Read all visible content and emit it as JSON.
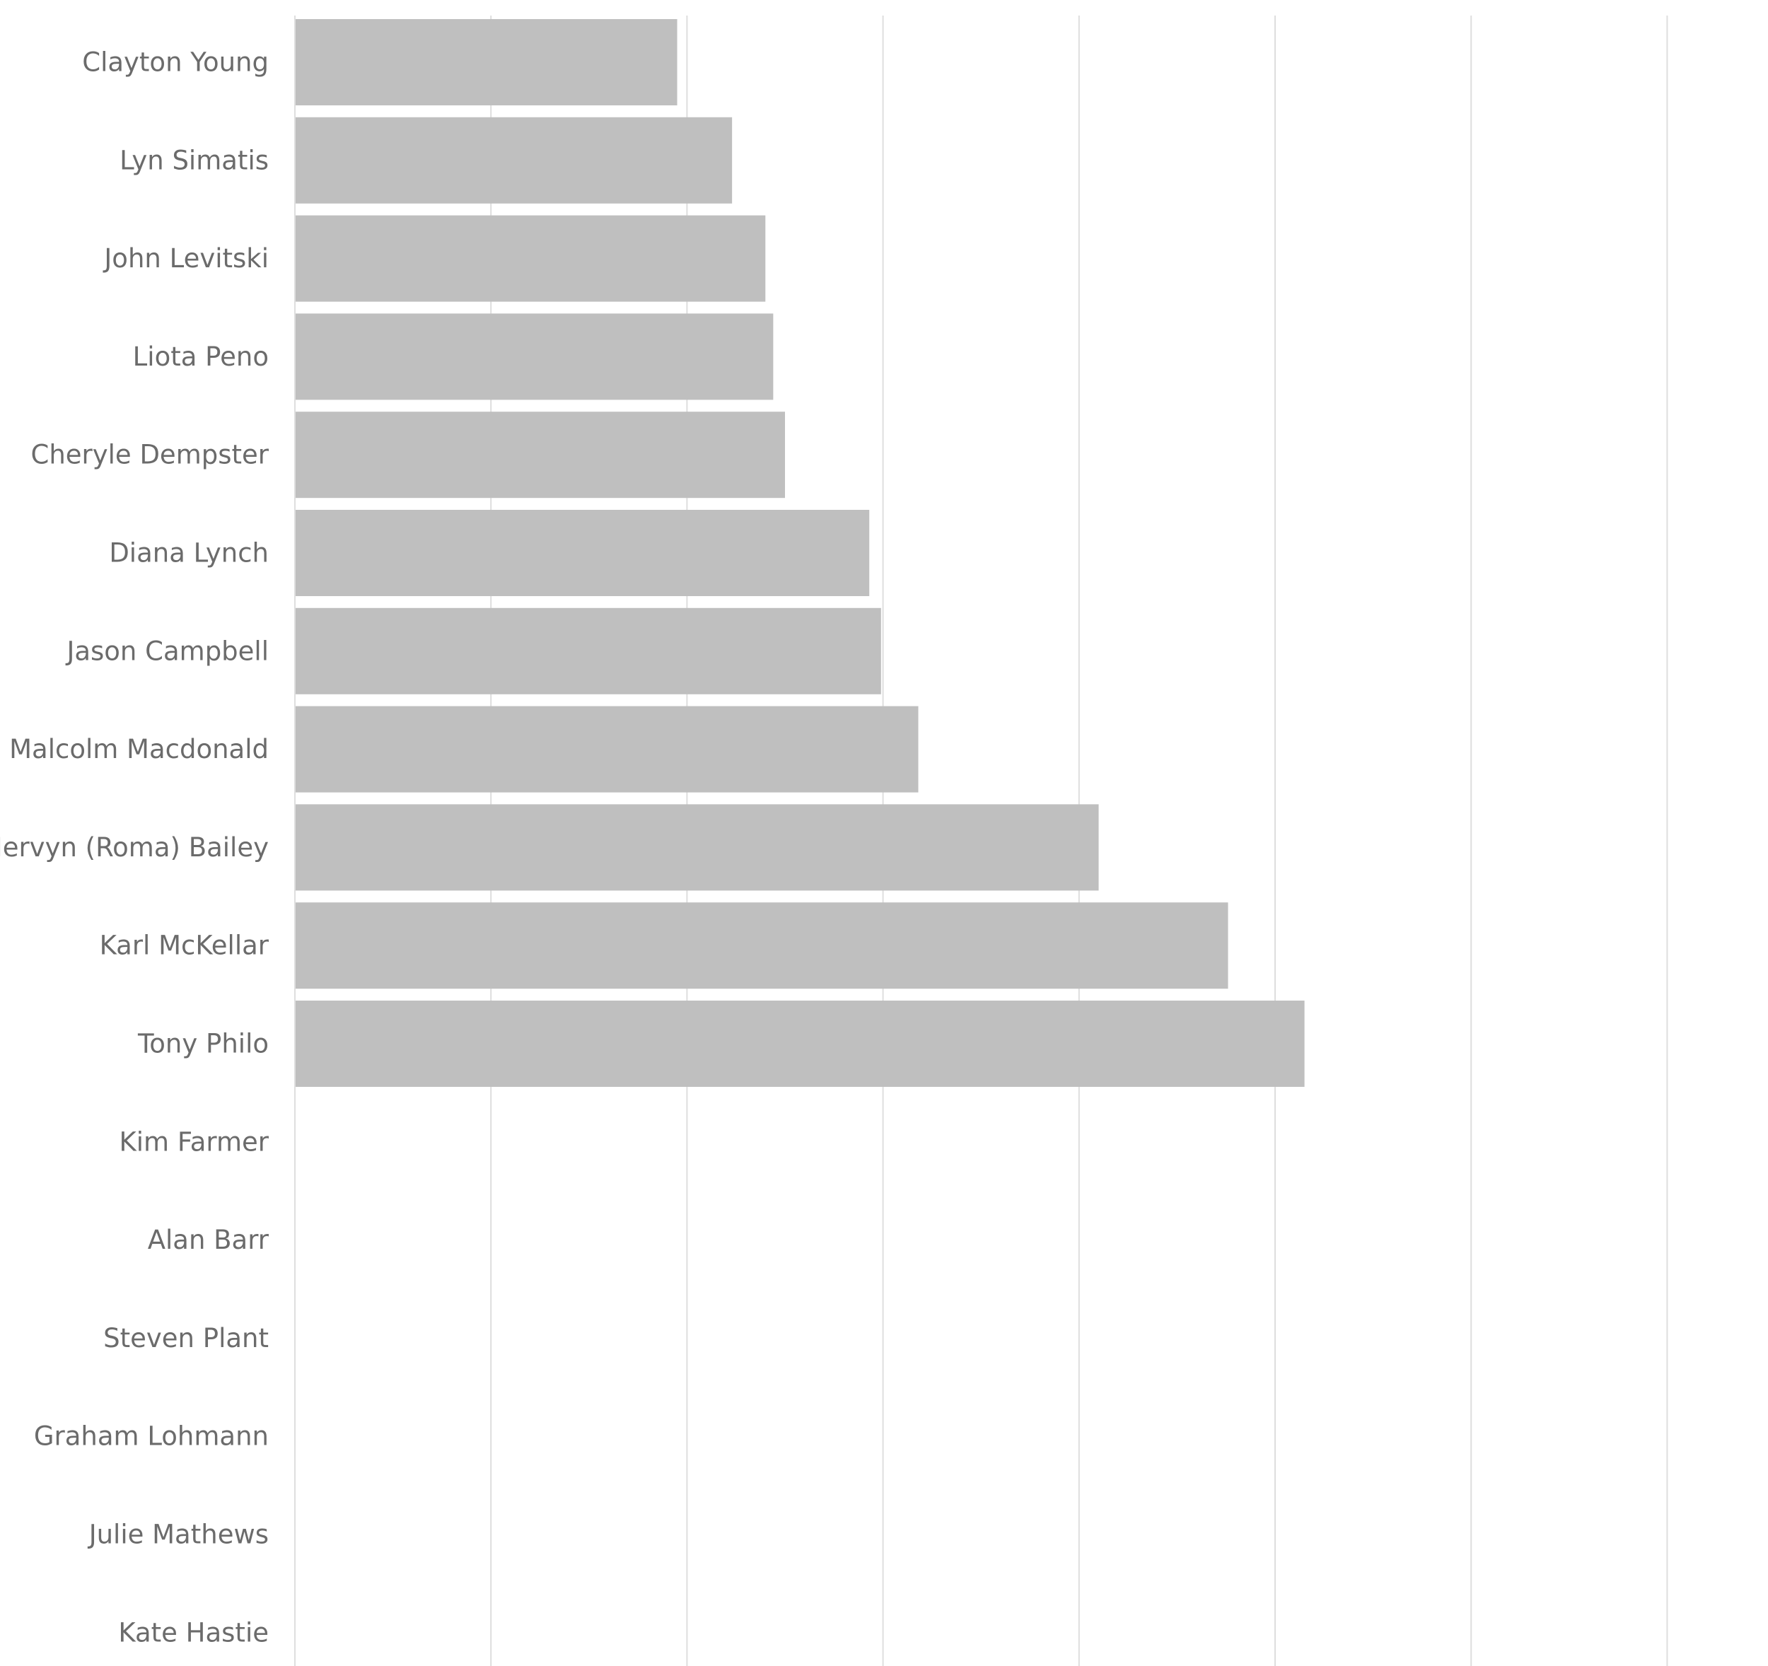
{
  "chart_data": {
    "type": "bar",
    "orientation": "horizontal",
    "title": "",
    "xlabel": "",
    "ylabel": "",
    "grid": true,
    "xlim": [
      0,
      7
    ],
    "categories": [
      "Clayton Young",
      "Lyn Simatis",
      "John Levitski",
      "Liota Peno",
      "Cheryle Dempster",
      "Diana Lynch",
      "Jason Campbell",
      "Malcolm Macdonald",
      "Mervyn (Roma) Bailey",
      "Karl McKellar",
      "Tony Philo",
      "Kim Farmer",
      "Alan Barr",
      "Steven Plant",
      "Graham Lohmann",
      "Julie Mathews",
      "Kate Hastie"
    ],
    "values": [
      1.95,
      2.23,
      2.4,
      2.44,
      2.5,
      2.93,
      2.99,
      3.18,
      4.1,
      4.76,
      5.15,
      0,
      0,
      0,
      0,
      0,
      0
    ],
    "colors": {
      "bar": "#bfbfbf",
      "grid": "#dedede",
      "label": "#6b6b6b"
    }
  }
}
